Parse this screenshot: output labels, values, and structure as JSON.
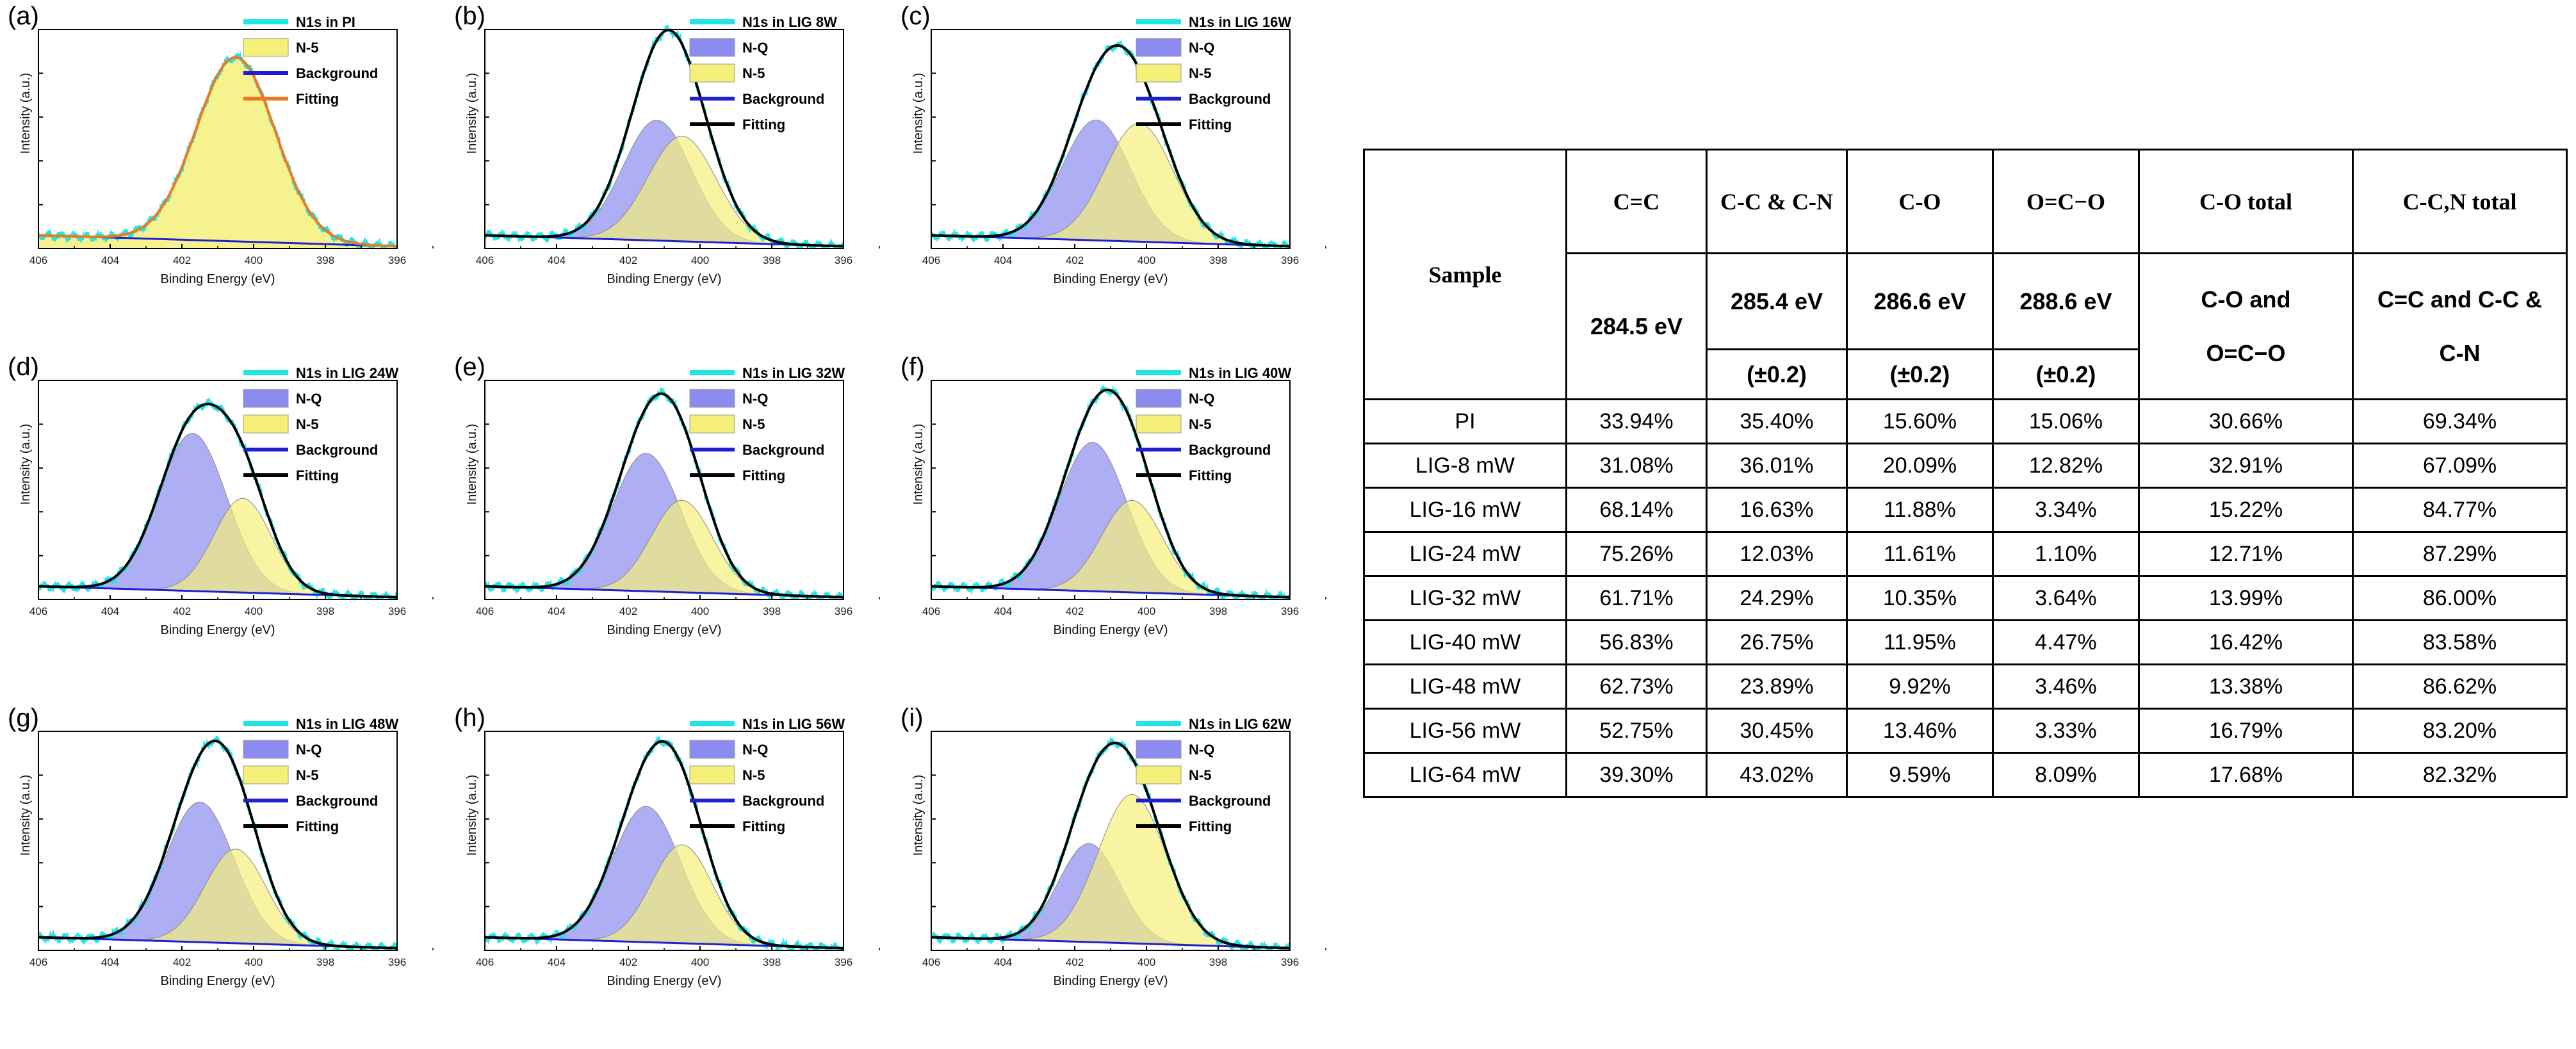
{
  "colors": {
    "raw": "#22e5e5",
    "nq": "#8c8cf0",
    "n5": "#f5f07a",
    "background": "#1f1fd0",
    "fitting": "#000000",
    "fitting_pi": "#f07820"
  },
  "chart_data": [
    {
      "type": "line",
      "label": "(a)",
      "title": "N1s in PI",
      "xlabel": "Binding Energy (eV)",
      "ylabel": "Intensity (a.u.)",
      "xlim": [
        406,
        396
      ],
      "xticks": [
        "406",
        "404",
        "402",
        "400",
        "398",
        "396"
      ],
      "ylim": [
        0,
        1
      ],
      "legend": [
        "N1s in PI",
        "N-5",
        "Background",
        "Fitting"
      ],
      "baseline": [
        0.06,
        0.01
      ],
      "peaks": [
        {
          "name": "N-5",
          "center": 400.5,
          "height": 0.84,
          "width": 1.1
        }
      ]
    },
    {
      "type": "line",
      "label": "(b)",
      "title": "N1s in LIG 8W",
      "xlabel": "Binding Energy (eV)",
      "ylabel": "Intensity (a.u.)",
      "xlim": [
        406,
        396
      ],
      "xticks": [
        "406",
        "404",
        "402",
        "400",
        "398",
        "396"
      ],
      "ylim": [
        0,
        1
      ],
      "legend": [
        "N1s in LIG 8W",
        "N-Q",
        "N-5",
        "Background",
        "Fitting"
      ],
      "baseline": [
        0.06,
        0.01
      ],
      "peaks": [
        {
          "name": "N-Q",
          "center": 401.2,
          "height": 0.55,
          "width": 0.95
        },
        {
          "name": "N-5",
          "center": 400.5,
          "height": 0.48,
          "width": 0.95
        }
      ]
    },
    {
      "type": "line",
      "label": "(c)",
      "title": "N1s in LIG 16W",
      "xlabel": "Binding Energy (eV)",
      "ylabel": "Intensity (a.u.)",
      "xlim": [
        406,
        396
      ],
      "xticks": [
        "406",
        "404",
        "402",
        "400",
        "398",
        "396"
      ],
      "ylim": [
        0,
        1
      ],
      "legend": [
        "N1s in LIG 16W",
        "N-Q",
        "N-5",
        "Background",
        "Fitting"
      ],
      "baseline": [
        0.06,
        0.01
      ],
      "peaks": [
        {
          "name": "N-Q",
          "center": 401.4,
          "height": 0.55,
          "width": 0.95
        },
        {
          "name": "N-5",
          "center": 400.2,
          "height": 0.54,
          "width": 0.95
        }
      ]
    },
    {
      "type": "line",
      "label": "(d)",
      "title": "N1s in LIG 24W",
      "xlabel": "Binding Energy (eV)",
      "ylabel": "Intensity (a.u.)",
      "xlim": [
        406,
        396
      ],
      "xticks": [
        "406",
        "404",
        "402",
        "400",
        "398",
        "396"
      ],
      "ylim": [
        0,
        1
      ],
      "legend": [
        "N1s in LIG 24W",
        "N-Q",
        "N-5",
        "Background",
        "Fitting"
      ],
      "baseline": [
        0.06,
        0.01
      ],
      "peaks": [
        {
          "name": "N-Q",
          "center": 401.7,
          "height": 0.72,
          "width": 0.95
        },
        {
          "name": "N-5",
          "center": 400.3,
          "height": 0.43,
          "width": 0.8
        }
      ]
    },
    {
      "type": "line",
      "label": "(e)",
      "title": "N1s in LIG 32W",
      "xlabel": "Binding Energy (eV)",
      "ylabel": "Intensity (a.u.)",
      "xlim": [
        406,
        396
      ],
      "xticks": [
        "406",
        "404",
        "402",
        "400",
        "398",
        "396"
      ],
      "ylim": [
        0,
        1
      ],
      "legend": [
        "N1s in LIG 32W",
        "N-Q",
        "N-5",
        "Background",
        "Fitting"
      ],
      "baseline": [
        0.06,
        0.01
      ],
      "peaks": [
        {
          "name": "N-Q",
          "center": 401.5,
          "height": 0.63,
          "width": 0.95
        },
        {
          "name": "N-5",
          "center": 400.5,
          "height": 0.42,
          "width": 0.85
        }
      ]
    },
    {
      "type": "line",
      "label": "(f)",
      "title": "N1s in LIG 40W",
      "xlabel": "Binding Energy (eV)",
      "ylabel": "Intensity (a.u.)",
      "xlim": [
        406,
        396
      ],
      "xticks": [
        "406",
        "404",
        "402",
        "400",
        "398",
        "396"
      ],
      "ylim": [
        0,
        1
      ],
      "legend": [
        "N1s in LIG 40W",
        "N-Q",
        "N-5",
        "Background",
        "Fitting"
      ],
      "baseline": [
        0.06,
        0.01
      ],
      "peaks": [
        {
          "name": "N-Q",
          "center": 401.5,
          "height": 0.68,
          "width": 0.95
        },
        {
          "name": "N-5",
          "center": 400.4,
          "height": 0.42,
          "width": 0.85
        }
      ]
    },
    {
      "type": "line",
      "label": "(g)",
      "title": "N1s in LIG 48W",
      "xlabel": "Binding Energy (eV)",
      "ylabel": "Intensity (a.u.)",
      "xlim": [
        406,
        396
      ],
      "xticks": [
        "406",
        "404",
        "402",
        "400",
        "398",
        "396"
      ],
      "ylim": [
        0,
        1
      ],
      "legend": [
        "N1s in LIG 48W",
        "N-Q",
        "N-5",
        "Background",
        "Fitting"
      ],
      "baseline": [
        0.06,
        0.01
      ],
      "peaks": [
        {
          "name": "N-Q",
          "center": 401.5,
          "height": 0.64,
          "width": 0.95
        },
        {
          "name": "N-5",
          "center": 400.5,
          "height": 0.43,
          "width": 0.85
        }
      ]
    },
    {
      "type": "line",
      "label": "(h)",
      "title": "N1s in LIG 56W",
      "xlabel": "Binding Energy (eV)",
      "ylabel": "Intensity (a.u.)",
      "xlim": [
        406,
        396
      ],
      "xticks": [
        "406",
        "404",
        "402",
        "400",
        "398",
        "396"
      ],
      "ylim": [
        0,
        1
      ],
      "legend": [
        "N1s in LIG 56W",
        "N-Q",
        "N-5",
        "Background",
        "Fitting"
      ],
      "baseline": [
        0.06,
        0.01
      ],
      "peaks": [
        {
          "name": "N-Q",
          "center": 401.5,
          "height": 0.62,
          "width": 0.95
        },
        {
          "name": "N-5",
          "center": 400.5,
          "height": 0.45,
          "width": 0.85
        }
      ]
    },
    {
      "type": "line",
      "label": "(i)",
      "title": "N1s in LIG 62W",
      "xlabel": "Binding Energy (eV)",
      "ylabel": "Intensity (a.u.)",
      "xlim": [
        406,
        396
      ],
      "xticks": [
        "406",
        "404",
        "402",
        "400",
        "398",
        "396"
      ],
      "ylim": [
        0,
        1
      ],
      "legend": [
        "N1s in LIG 62W",
        "N-Q",
        "N-5",
        "Background",
        "Fitting"
      ],
      "baseline": [
        0.06,
        0.01
      ],
      "peaks": [
        {
          "name": "N-Q",
          "center": 401.6,
          "height": 0.45,
          "width": 0.85
        },
        {
          "name": "N-5",
          "center": 400.4,
          "height": 0.68,
          "width": 0.95
        }
      ]
    }
  ],
  "table": {
    "sample_header": "Sample",
    "col_names": [
      "C=C",
      "C-C & C-N",
      "C-O",
      "O=C−O",
      "C-O total",
      "C-C,N total"
    ],
    "energies": [
      "284.5 eV",
      "285.4 eV",
      "286.6 eV",
      "288.6 eV"
    ],
    "tolerance": "(±0.2)",
    "total_desc_co": [
      "C-O and",
      "O=C−O"
    ],
    "total_desc_cc": [
      "C=C and C-C &",
      "C-N"
    ],
    "rows": [
      {
        "sample": "PI",
        "values": [
          "33.94%",
          "35.40%",
          "15.60%",
          "15.06%",
          "30.66%",
          "69.34%"
        ]
      },
      {
        "sample": "LIG-8 mW",
        "values": [
          "31.08%",
          "36.01%",
          "20.09%",
          "12.82%",
          "32.91%",
          "67.09%"
        ]
      },
      {
        "sample": "LIG-16 mW",
        "values": [
          "68.14%",
          "16.63%",
          "11.88%",
          "3.34%",
          "15.22%",
          "84.77%"
        ]
      },
      {
        "sample": "LIG-24 mW",
        "values": [
          "75.26%",
          "12.03%",
          "11.61%",
          "1.10%",
          "12.71%",
          "87.29%"
        ]
      },
      {
        "sample": "LIG-32 mW",
        "values": [
          "61.71%",
          "24.29%",
          "10.35%",
          "3.64%",
          "13.99%",
          "86.00%"
        ]
      },
      {
        "sample": "LIG-40 mW",
        "values": [
          "56.83%",
          "26.75%",
          "11.95%",
          "4.47%",
          "16.42%",
          "83.58%"
        ]
      },
      {
        "sample": "LIG-48 mW",
        "values": [
          "62.73%",
          "23.89%",
          "9.92%",
          "3.46%",
          "13.38%",
          "86.62%"
        ]
      },
      {
        "sample": "LIG-56 mW",
        "values": [
          "52.75%",
          "30.45%",
          "13.46%",
          "3.33%",
          "16.79%",
          "83.20%"
        ]
      },
      {
        "sample": "LIG-64 mW",
        "values": [
          "39.30%",
          "43.02%",
          "9.59%",
          "8.09%",
          "17.68%",
          "82.32%"
        ]
      }
    ]
  }
}
